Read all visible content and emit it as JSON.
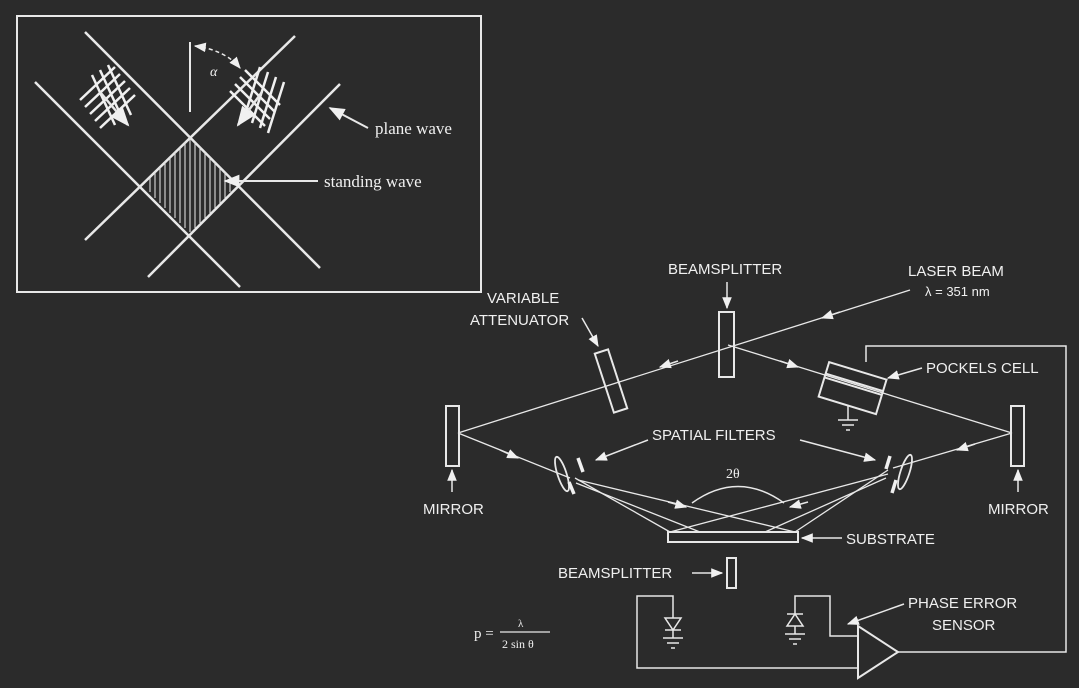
{
  "inset": {
    "alpha_label": "α",
    "plane_wave_label": "plane wave",
    "standing_wave_label": "standing wave"
  },
  "setup": {
    "beamsplitter_top_label": "BEAMSPLITTER",
    "laser_beam_label": "LASER BEAM",
    "laser_wavelength_label": "λ = 351 nm",
    "variable_attenuator_line1": "VARIABLE",
    "variable_attenuator_line2": "ATTENUATOR",
    "pockels_cell_label": "POCKELS CELL",
    "spatial_filters_label": "SPATIAL FILTERS",
    "two_theta_label": "2θ",
    "mirror_left_label": "MIRROR",
    "mirror_right_label": "MIRROR",
    "substrate_label": "SUBSTRATE",
    "beamsplitter_bottom_label": "BEAMSPLITTER",
    "phase_error_line1": "PHASE ERROR",
    "phase_error_line2": "SENSOR"
  },
  "formula": {
    "lhs": "p =",
    "numerator": "λ",
    "denominator": "2 sin θ"
  },
  "colors": {
    "background": "#2b2b2b",
    "line": "#e8e8e8"
  }
}
